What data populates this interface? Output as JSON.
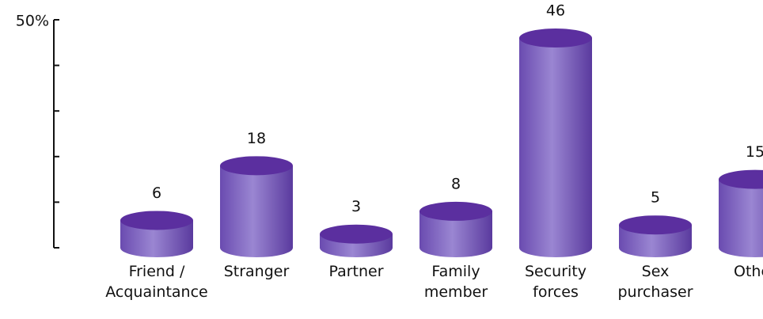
{
  "chart_data": {
    "type": "cylinder",
    "categories": [
      "Friend /\nAcquaintance",
      "Stranger",
      "Partner",
      "Family\nmember",
      "Security\nforces",
      "Sex\npurchaser",
      "Other"
    ],
    "values": [
      6,
      18,
      3,
      8,
      46,
      5,
      15
    ],
    "color": "#7a5cbf",
    "top_color": "#5b2f9f",
    "ylim": [
      0,
      50
    ],
    "yticks": [
      0,
      10,
      20,
      30,
      40,
      {
        "value": 50,
        "label": "50%"
      }
    ]
  }
}
